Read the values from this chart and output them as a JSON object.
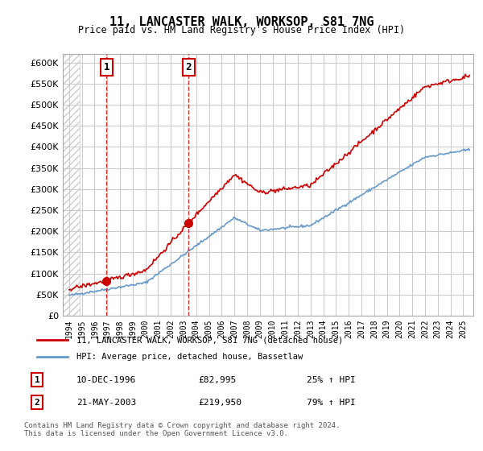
{
  "title": "11, LANCASTER WALK, WORKSOP, S81 7NG",
  "subtitle": "Price paid vs. HM Land Registry's House Price Index (HPI)",
  "hpi_label": "HPI: Average price, detached house, Bassetlaw",
  "property_label": "11, LANCASTER WALK, WORKSOP, S81 7NG (detached house)",
  "sale1_date": "10-DEC-1996",
  "sale1_price": 82995,
  "sale1_hpi": "25% ↑ HPI",
  "sale1_label": "1",
  "sale1_year": 1996.95,
  "sale2_date": "21-MAY-2003",
  "sale2_price": 219950,
  "sale2_hpi": "79% ↑ HPI",
  "sale2_label": "2",
  "sale2_year": 2003.38,
  "ylim_min": 0,
  "ylim_max": 620000,
  "xlim_min": 1993.5,
  "xlim_max": 2025.8,
  "background_hatch_color": "#e8e8e8",
  "property_line_color": "#cc0000",
  "hpi_line_color": "#6699cc",
  "sale_marker_color": "#cc0000",
  "vline_color": "#cc0000",
  "grid_color": "#cccccc",
  "footer_text": "Contains HM Land Registry data © Crown copyright and database right 2024.\nThis data is licensed under the Open Government Licence v3.0.",
  "yticks": [
    0,
    50000,
    100000,
    150000,
    200000,
    250000,
    300000,
    350000,
    400000,
    450000,
    500000,
    550000,
    600000
  ],
  "xticks": [
    1994,
    1995,
    1996,
    1997,
    1998,
    1999,
    2000,
    2001,
    2002,
    2003,
    2004,
    2005,
    2006,
    2007,
    2008,
    2009,
    2010,
    2011,
    2012,
    2013,
    2014,
    2015,
    2016,
    2017,
    2018,
    2019,
    2020,
    2021,
    2022,
    2023,
    2024,
    2025
  ]
}
